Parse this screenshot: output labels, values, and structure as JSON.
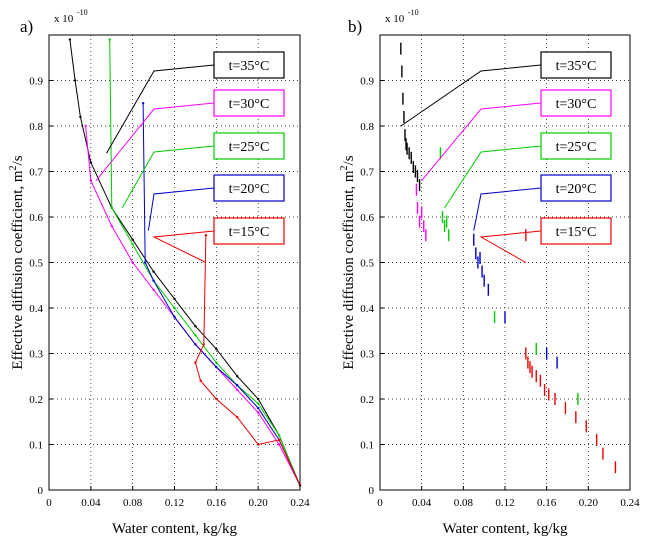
{
  "chart_data": [
    {
      "panel_label": "a)",
      "type": "line",
      "exponent_label": "x 10",
      "exponent": "-10",
      "xlabel": "Water content, kg/kg",
      "ylabel_main": "Effective diffusion coefficient, m",
      "ylabel_sup": "2",
      "ylabel_tail": "/s",
      "xlim": [
        0,
        0.24
      ],
      "ylim": [
        0,
        1.0
      ],
      "xticks": [
        "0",
        "0.04",
        "0.08",
        "0.12",
        "0.16",
        "0.20",
        "0.24"
      ],
      "yticks": [
        "0",
        "0.1",
        "0.2",
        "0.3",
        "0.4",
        "0.5",
        "0.6",
        "0.7",
        "0.8",
        "0.9"
      ],
      "grid": true,
      "legend_position": "right-inside",
      "series": [
        {
          "name": "t=35°C",
          "color": "#000000",
          "callout": {
            "box": [
              0.06,
              0.08
            ],
            "target": [
              0.055,
              0.074
            ]
          },
          "x": [
            0.02,
            0.025,
            0.03,
            0.04,
            0.06,
            0.08,
            0.1,
            0.12,
            0.14,
            0.16,
            0.18,
            0.2,
            0.22,
            0.24
          ],
          "y": [
            0.99,
            0.9,
            0.82,
            0.72,
            0.62,
            0.55,
            0.48,
            0.42,
            0.36,
            0.31,
            0.25,
            0.2,
            0.12,
            0.01
          ]
        },
        {
          "name": "t=30°C",
          "color": "#ff00ff",
          "callout": {
            "box": [
              0.06,
              0.08
            ],
            "target": [
              0.045,
              0.068
            ]
          },
          "x": [
            0.035,
            0.04,
            0.06,
            0.08,
            0.1,
            0.12,
            0.14,
            0.16,
            0.18,
            0.2,
            0.22,
            0.24
          ],
          "y": [
            0.8,
            0.68,
            0.58,
            0.5,
            0.44,
            0.38,
            0.32,
            0.27,
            0.22,
            0.17,
            0.1,
            0.01
          ]
        },
        {
          "name": "t=25°C",
          "color": "#00cc00",
          "callout": {
            "box": [
              0.06,
              0.08
            ],
            "target": [
              0.07,
              0.062
            ]
          },
          "x": [
            0.058,
            0.06,
            0.08,
            0.1,
            0.12,
            0.14,
            0.16,
            0.18,
            0.2,
            0.22,
            0.24
          ],
          "y": [
            0.99,
            0.62,
            0.54,
            0.46,
            0.4,
            0.34,
            0.28,
            0.23,
            0.19,
            0.12,
            0.01
          ]
        },
        {
          "name": "t=20°C",
          "color": "#0000cc",
          "callout": {
            "box": [
              0.06,
              0.08
            ],
            "target": [
              0.095,
              0.057
            ]
          },
          "x": [
            0.09,
            0.092,
            0.1,
            0.12,
            0.14,
            0.16,
            0.18,
            0.2,
            0.22,
            0.24
          ],
          "y": [
            0.85,
            0.5,
            0.46,
            0.38,
            0.32,
            0.27,
            0.23,
            0.18,
            0.11,
            0.01
          ]
        },
        {
          "name": "t=15°C",
          "color": "#ee0000",
          "callout": {
            "box": [
              0.06,
              0.08
            ],
            "target": [
              0.15,
              0.05
            ]
          },
          "x": [
            0.15,
            0.148,
            0.14,
            0.145,
            0.16,
            0.18,
            0.2,
            0.22,
            0.24
          ],
          "y": [
            0.56,
            0.32,
            0.28,
            0.24,
            0.2,
            0.16,
            0.1,
            0.11,
            0.01
          ]
        }
      ]
    },
    {
      "panel_label": "b)",
      "type": "scatter",
      "exponent_label": "x 10",
      "exponent": "-10",
      "xlabel": "Water content, kg/kg",
      "ylabel_main": "Effective diffusion coefficient, m",
      "ylabel_sup": "2",
      "ylabel_tail": "/s",
      "xlim": [
        0,
        0.24
      ],
      "ylim": [
        0,
        1.0
      ],
      "xticks": [
        "0",
        "0.04",
        "0.08",
        "0.12",
        "0.16",
        "0.20",
        "0.24"
      ],
      "yticks": [
        "0",
        "0.1",
        "0.2",
        "0.3",
        "0.4",
        "0.5",
        "0.6",
        "0.7",
        "0.8",
        "0.9"
      ],
      "grid": true,
      "legend_position": "right-inside",
      "series": [
        {
          "name": "t=35°C",
          "color": "#000000",
          "callout": {
            "target": [
              0.02,
              0.08
            ]
          },
          "points": [
            [
              0.02,
              0.97
            ],
            [
              0.021,
              0.92
            ],
            [
              0.022,
              0.86
            ],
            [
              0.023,
              0.82
            ],
            [
              0.024,
              0.78
            ],
            [
              0.025,
              0.76
            ],
            [
              0.026,
              0.75
            ],
            [
              0.028,
              0.74
            ],
            [
              0.03,
              0.73
            ],
            [
              0.032,
              0.71
            ],
            [
              0.034,
              0.7
            ],
            [
              0.036,
              0.69
            ],
            [
              0.038,
              0.67
            ]
          ]
        },
        {
          "name": "t=30°C",
          "color": "#ff00ff",
          "callout": {
            "target": [
              0.04,
              0.068
            ]
          },
          "points": [
            [
              0.035,
              0.66
            ],
            [
              0.036,
              0.62
            ],
            [
              0.038,
              0.59
            ],
            [
              0.04,
              0.61
            ],
            [
              0.042,
              0.58
            ],
            [
              0.044,
              0.56
            ]
          ]
        },
        {
          "name": "t=25°C",
          "color": "#00cc00",
          "callout": {
            "target": [
              0.062,
              0.062
            ]
          },
          "points": [
            [
              0.058,
              0.74
            ],
            [
              0.06,
              0.6
            ],
            [
              0.062,
              0.58
            ],
            [
              0.064,
              0.59
            ],
            [
              0.066,
              0.56
            ],
            [
              0.11,
              0.38
            ],
            [
              0.15,
              0.31
            ],
            [
              0.19,
              0.2
            ]
          ]
        },
        {
          "name": "t=20°C",
          "color": "#0000cc",
          "callout": {
            "target": [
              0.09,
              0.057
            ]
          },
          "points": [
            [
              0.09,
              0.55
            ],
            [
              0.092,
              0.52
            ],
            [
              0.094,
              0.5
            ],
            [
              0.096,
              0.51
            ],
            [
              0.098,
              0.48
            ],
            [
              0.1,
              0.46
            ],
            [
              0.104,
              0.44
            ],
            [
              0.12,
              0.38
            ],
            [
              0.16,
              0.3
            ],
            [
              0.17,
              0.28
            ]
          ]
        },
        {
          "name": "t=15°C",
          "color": "#ee0000",
          "callout": {
            "target": [
              0.14,
              0.05
            ]
          },
          "points": [
            [
              0.14,
              0.56
            ],
            [
              0.14,
              0.3
            ],
            [
              0.142,
              0.28
            ],
            [
              0.144,
              0.27
            ],
            [
              0.146,
              0.26
            ],
            [
              0.15,
              0.25
            ],
            [
              0.154,
              0.24
            ],
            [
              0.158,
              0.22
            ],
            [
              0.162,
              0.21
            ],
            [
              0.168,
              0.2
            ],
            [
              0.178,
              0.18
            ],
            [
              0.188,
              0.16
            ],
            [
              0.198,
              0.14
            ],
            [
              0.208,
              0.11
            ],
            [
              0.214,
              0.08
            ],
            [
              0.226,
              0.05
            ]
          ]
        }
      ]
    }
  ]
}
